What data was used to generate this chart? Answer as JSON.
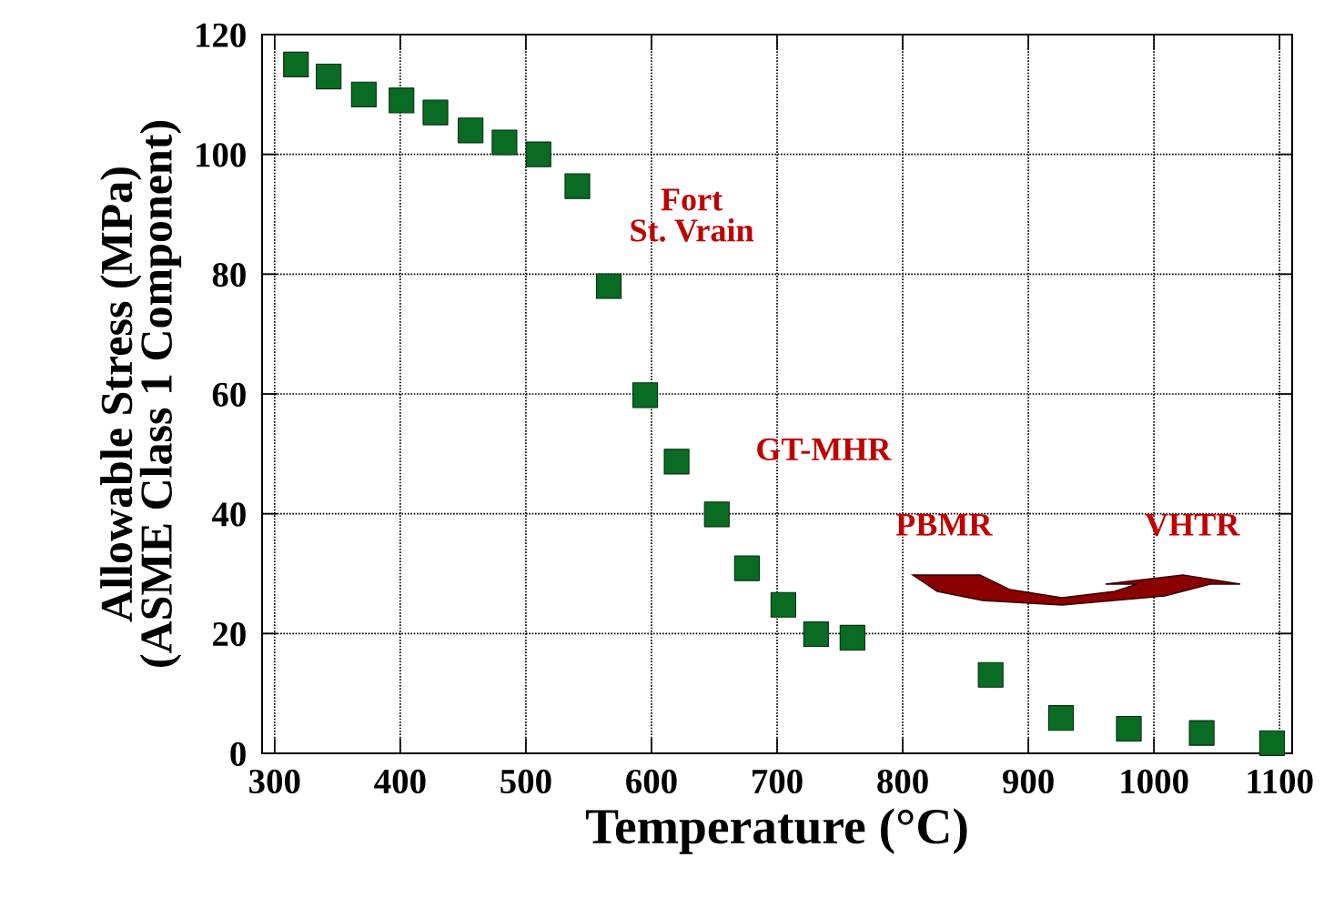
{
  "chart_data": {
    "type": "scatter",
    "xlabel": "Temperature (°C)",
    "ylabel": "Allowable Stress (MPa)\n(ASME Class 1 Component)",
    "x": [
      317,
      343,
      371,
      401,
      428,
      456,
      483,
      510,
      541,
      566,
      595,
      620,
      652,
      676,
      705,
      731,
      760,
      870,
      926,
      980,
      1038,
      1094
    ],
    "series": [
      {
        "color": "#0a6b23",
        "values": [
          115,
          113,
          110,
          109,
          107,
          104,
          102,
          100,
          94.7,
          78,
          59.8,
          48.7,
          39.9,
          30.9,
          24.8,
          19.9,
          19.3,
          13.1,
          5.9,
          4.1,
          3.4,
          1.7
        ]
      }
    ],
    "marker": "square",
    "grid": true,
    "xlim": [
      290,
      1110
    ],
    "xticks": [
      300,
      400,
      500,
      600,
      700,
      800,
      900,
      1000,
      1100
    ],
    "ylim": [
      0,
      120
    ],
    "yticks": [
      0,
      20,
      40,
      60,
      80,
      100,
      120
    ],
    "annotations": [
      "Fort\nSt. Vrain",
      "GT-MHR",
      "PBMR",
      "VHTR"
    ]
  }
}
